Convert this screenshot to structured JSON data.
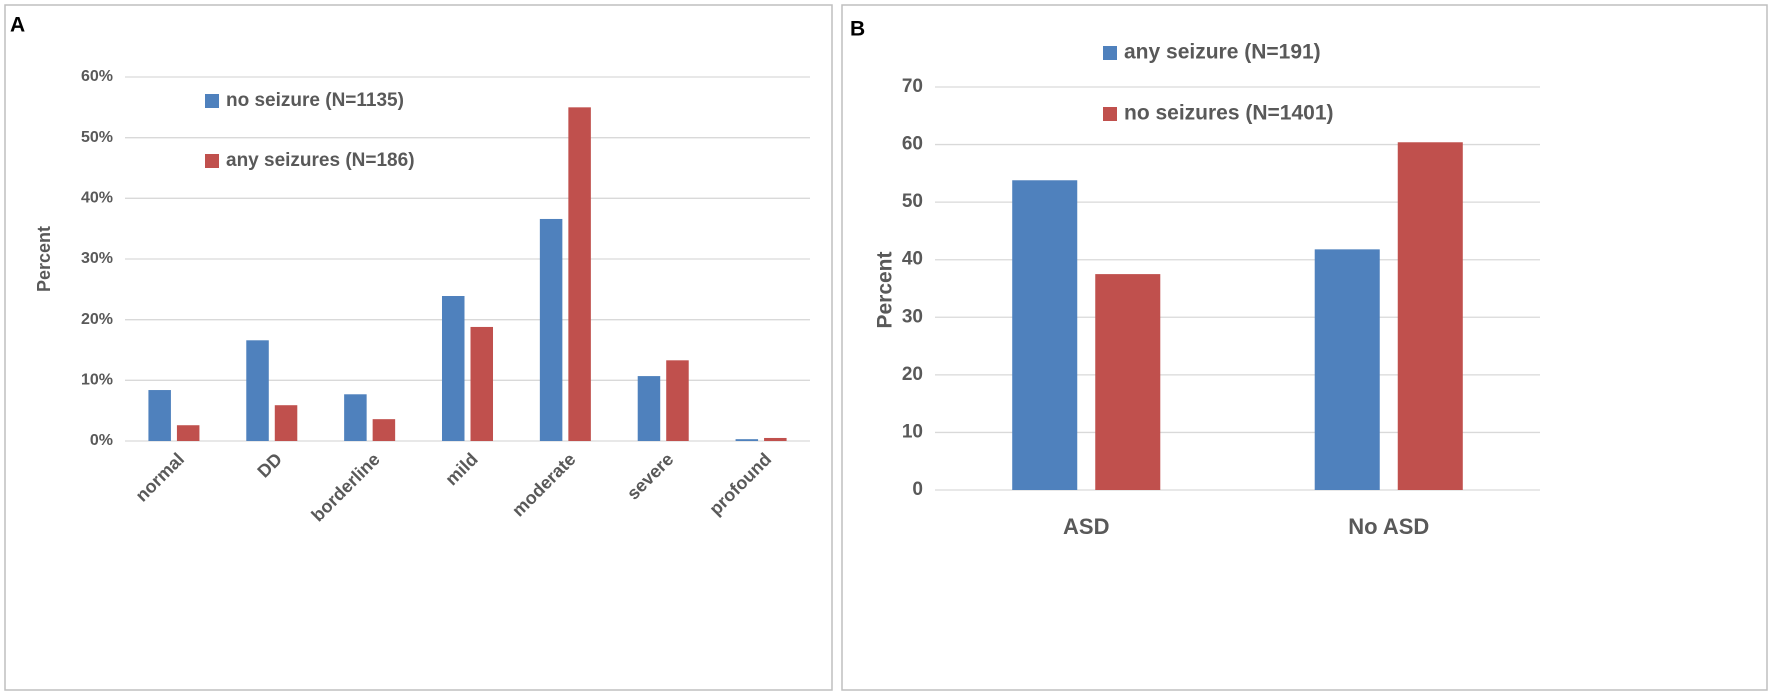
{
  "chart_data": [
    {
      "type": "bar",
      "panel": "A",
      "ylabel": "Percent",
      "categories": [
        "normal",
        "DD",
        "borderline",
        "mild",
        "moderate",
        "severe",
        "profound"
      ],
      "series": [
        {
          "name": "no seizure (N=1135)",
          "color": "#4f81bd",
          "values": [
            8.4,
            16.6,
            7.7,
            23.9,
            36.6,
            10.7,
            0.3
          ]
        },
        {
          "name": "any seizures (N=186)",
          "color": "#c0504d",
          "values": [
            2.6,
            5.9,
            3.6,
            18.8,
            55.0,
            13.3,
            0.5
          ]
        }
      ],
      "ylim": [
        0,
        60
      ],
      "yticks": [
        {
          "value": 0,
          "label": "0%"
        },
        {
          "value": 10,
          "label": "10%"
        },
        {
          "value": 20,
          "label": "20%"
        },
        {
          "value": 30,
          "label": "30%"
        },
        {
          "value": 40,
          "label": "40%"
        },
        {
          "value": 50,
          "label": "50%"
        },
        {
          "value": 60,
          "label": "60%"
        }
      ],
      "grid": true
    },
    {
      "type": "bar",
      "panel": "B",
      "ylabel": "Percent",
      "categories": [
        "ASD",
        "No ASD"
      ],
      "series": [
        {
          "name": "any seizure (N=191)",
          "color": "#4f81bd",
          "values": [
            53.8,
            41.8
          ]
        },
        {
          "name": "no seizures (N=1401)",
          "color": "#c0504d",
          "values": [
            37.5,
            60.4
          ]
        }
      ],
      "ylim": [
        0,
        70
      ],
      "yticks": [
        0,
        10,
        20,
        30,
        40,
        50,
        60,
        70
      ],
      "grid": true
    }
  ]
}
